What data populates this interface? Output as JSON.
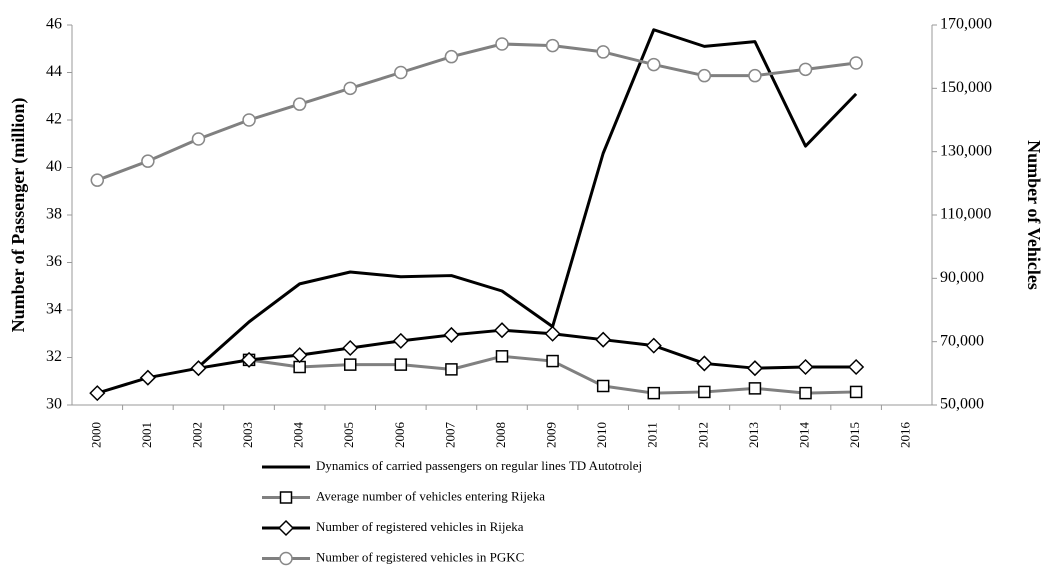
{
  "chart_data": {
    "type": "line",
    "ylabel": "Number of Passenger (million)",
    "y2label": "Number of Vehicles",
    "categories": [
      "2000",
      "2001",
      "2002",
      "2003",
      "2004",
      "2005",
      "2006",
      "2007",
      "2008",
      "2009",
      "2010",
      "2011",
      "2012",
      "2013",
      "2014",
      "2015",
      "2016"
    ],
    "ylim": [
      30,
      46
    ],
    "yticks": [
      30,
      32,
      34,
      36,
      38,
      40,
      42,
      44,
      46
    ],
    "y2lim": [
      50000,
      170000
    ],
    "y2ticks": [
      {
        "value": 50000,
        "label": "50,000"
      },
      {
        "value": 70000,
        "label": "70,000"
      },
      {
        "value": 90000,
        "label": "90,000"
      },
      {
        "value": 110000,
        "label": "110,000"
      },
      {
        "value": 130000,
        "label": "130,000"
      },
      {
        "value": 150000,
        "label": "150,000"
      },
      {
        "value": 170000,
        "label": "170,000"
      }
    ],
    "series": [
      {
        "name": "Dynamics of carried passengers on regular lines TD Autotrolej",
        "color": "#000000",
        "marker": "none",
        "values": [
          null,
          null,
          31.6,
          33.5,
          35.1,
          35.6,
          35.4,
          35.45,
          34.8,
          33.3,
          40.6,
          45.8,
          45.1,
          45.3,
          40.9,
          43.1,
          null
        ]
      },
      {
        "name": "Average number of vehicles entering Rijeka",
        "color": "#808080",
        "marker": "square",
        "axis": "y2",
        "values": [
          null,
          null,
          null,
          64250,
          62000,
          62750,
          62750,
          61250,
          65375,
          63875,
          56000,
          53750,
          54125,
          55250,
          53750,
          54125,
          null
        ]
      },
      {
        "name": "Number of registered vehicles in Rijeka",
        "color": "#000000",
        "marker": "diamond",
        "axis": "y2",
        "values": [
          53750,
          58625,
          61625,
          64250,
          65750,
          68000,
          70250,
          72125,
          73625,
          72500,
          70625,
          68750,
          63125,
          61625,
          62000,
          62000,
          null
        ]
      },
      {
        "name": "Number of registered vehicles in PGKC",
        "color": "#808080",
        "marker": "circle",
        "axis": "y2",
        "values": [
          121000,
          127000,
          134000,
          140000,
          145000,
          150000,
          155000,
          160000,
          164000,
          163500,
          161500,
          157500,
          154000,
          154000,
          156000,
          158000,
          null
        ]
      }
    ]
  }
}
